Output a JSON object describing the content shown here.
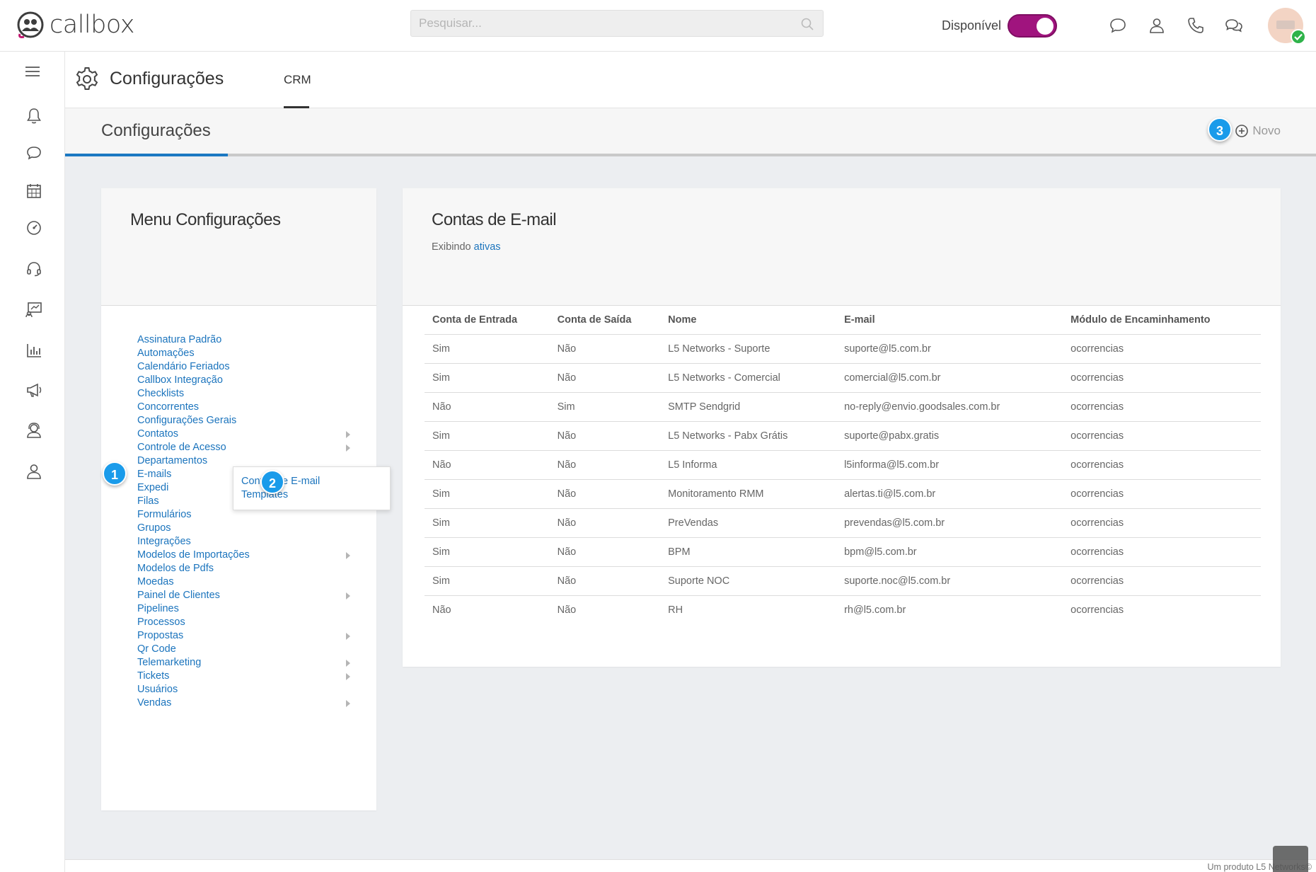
{
  "topbar": {
    "logo_text": "callbox",
    "search_placeholder": "Pesquisar...",
    "status_label": "Disponível"
  },
  "page": {
    "title": "Configurações",
    "tab": "CRM"
  },
  "section": {
    "title": "Configurações",
    "new_label": "Novo",
    "progress": 0.13
  },
  "menu": {
    "title": "Menu Configurações",
    "items": [
      {
        "label": "Assinatura Padrão",
        "submenu": false
      },
      {
        "label": "Automações",
        "submenu": false
      },
      {
        "label": "Calendário Feriados",
        "submenu": false
      },
      {
        "label": "Callbox Integração",
        "submenu": false
      },
      {
        "label": "Checklists",
        "submenu": false
      },
      {
        "label": "Concorrentes",
        "submenu": false
      },
      {
        "label": "Configurações Gerais",
        "submenu": false
      },
      {
        "label": "Contatos",
        "submenu": true
      },
      {
        "label": "Controle de Acesso",
        "submenu": true
      },
      {
        "label": "Departamentos",
        "submenu": false
      },
      {
        "label": "E-mails",
        "submenu": true
      },
      {
        "label": "Expedi",
        "submenu": false
      },
      {
        "label": "Filas",
        "submenu": false
      },
      {
        "label": "Formulários",
        "submenu": false
      },
      {
        "label": "Grupos",
        "submenu": false
      },
      {
        "label": "Integrações",
        "submenu": false
      },
      {
        "label": "Modelos de Importações",
        "submenu": true
      },
      {
        "label": "Modelos de Pdfs",
        "submenu": false
      },
      {
        "label": "Moedas",
        "submenu": false
      },
      {
        "label": "Painel de Clientes",
        "submenu": true
      },
      {
        "label": "Pipelines",
        "submenu": false
      },
      {
        "label": "Processos",
        "submenu": false
      },
      {
        "label": "Propostas",
        "submenu": true
      },
      {
        "label": "Qr Code",
        "submenu": false
      },
      {
        "label": "Telemarketing",
        "submenu": true
      },
      {
        "label": "Tickets",
        "submenu": true
      },
      {
        "label": "Usuários",
        "submenu": false
      },
      {
        "label": "Vendas",
        "submenu": true
      }
    ],
    "submenu": {
      "contas": "Contas de E-mail",
      "templates": "Templates"
    }
  },
  "badges": {
    "b1": "1",
    "b2": "2",
    "b3": "3"
  },
  "emails": {
    "title": "Contas de E-mail",
    "showing_prefix": "Exibindo",
    "showing_link": "ativas",
    "columns": [
      "Conta de Entrada",
      "Conta de Saída",
      "Nome",
      "E-mail",
      "Módulo de Encaminhamento"
    ],
    "rows": [
      [
        "Sim",
        "Não",
        "L5 Networks - Suporte",
        "suporte@l5.com.br",
        "ocorrencias"
      ],
      [
        "Sim",
        "Não",
        "L5 Networks - Comercial",
        "comercial@l5.com.br",
        "ocorrencias"
      ],
      [
        "Não",
        "Sim",
        "SMTP Sendgrid",
        "no-reply@envio.goodsales.com.br",
        "ocorrencias"
      ],
      [
        "Sim",
        "Não",
        "L5 Networks - Pabx Grátis",
        "suporte@pabx.gratis",
        "ocorrencias"
      ],
      [
        "Não",
        "Não",
        "L5 Informa",
        "l5informa@l5.com.br",
        "ocorrencias"
      ],
      [
        "Sim",
        "Não",
        "Monitoramento RMM",
        "alertas.ti@l5.com.br",
        "ocorrencias"
      ],
      [
        "Sim",
        "Não",
        "PreVendas",
        "prevendas@l5.com.br",
        "ocorrencias"
      ],
      [
        "Sim",
        "Não",
        "BPM",
        "bpm@l5.com.br",
        "ocorrencias"
      ],
      [
        "Sim",
        "Não",
        "Suporte NOC",
        "suporte.noc@l5.com.br",
        "ocorrencias"
      ],
      [
        "Não",
        "Não",
        "RH",
        "rh@l5.com.br",
        "ocorrencias"
      ]
    ]
  },
  "footer": {
    "text": "Um produto L5 Networks©"
  },
  "colors": {
    "accent": "#1b74bd",
    "toggle": "#a0147e",
    "badge": "#1a9bea"
  }
}
